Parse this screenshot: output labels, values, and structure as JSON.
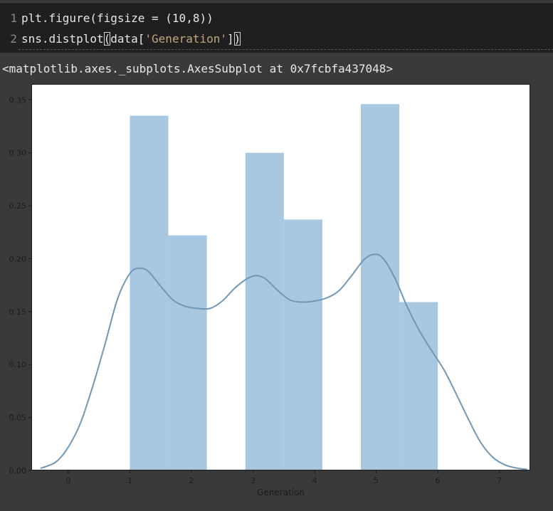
{
  "code": {
    "lines": [
      {
        "num": "1",
        "pre": "plt.figure(figsize = (10,8))",
        "str": "",
        "post": ""
      },
      {
        "num": "2",
        "pre": "sns.distplot",
        "bracket_open": "(",
        "mid": "data[",
        "str": "'Generation'",
        "post": "]",
        "bracket_close": ")"
      }
    ]
  },
  "output": {
    "text": "<matplotlib.axes._subplots.AxesSubplot at 0x7fcbfa437048>"
  },
  "colors": {
    "bar_fill": "#a8c8e1",
    "kde_line": "#6f98b8",
    "plot_bg": "#ffffff",
    "figure_bg": "#3a3a3a"
  },
  "chart_data": {
    "type": "bar",
    "overlay": "kde-line",
    "title": "",
    "xlabel": "Generation",
    "ylabel": "",
    "xlim": [
      -0.6,
      7.5
    ],
    "ylim": [
      0,
      0.365
    ],
    "xticks": [
      0,
      1,
      2,
      3,
      4,
      5,
      6,
      7
    ],
    "yticks": [
      0.0,
      0.05,
      0.1,
      0.15,
      0.2,
      0.25,
      0.3,
      0.35
    ],
    "ytick_labels": [
      "0.00",
      "0.05",
      "0.10",
      "0.15",
      "0.20",
      "0.25",
      "0.30",
      "0.35"
    ],
    "bins": [
      {
        "x0": 1.0,
        "x1": 1.625,
        "value": 0.335
      },
      {
        "x0": 1.625,
        "x1": 2.25,
        "value": 0.222
      },
      {
        "x0": 2.875,
        "x1": 3.5,
        "value": 0.3
      },
      {
        "x0": 3.5,
        "x1": 4.125,
        "value": 0.237
      },
      {
        "x0": 4.75,
        "x1": 5.375,
        "value": 0.346
      },
      {
        "x0": 5.375,
        "x1": 6.0,
        "value": 0.159
      }
    ],
    "kde": {
      "x": [
        -0.45,
        -0.2,
        0.0,
        0.2,
        0.4,
        0.6,
        0.8,
        1.0,
        1.15,
        1.3,
        1.5,
        1.7,
        1.9,
        2.1,
        2.3,
        2.5,
        2.7,
        2.9,
        3.05,
        3.2,
        3.4,
        3.6,
        3.8,
        4.0,
        4.2,
        4.4,
        4.6,
        4.8,
        4.95,
        5.1,
        5.3,
        5.5,
        5.7,
        5.9,
        6.1,
        6.3,
        6.5,
        6.7,
        6.9,
        7.1,
        7.3,
        7.45
      ],
      "y": [
        0.002,
        0.008,
        0.022,
        0.045,
        0.08,
        0.12,
        0.162,
        0.186,
        0.191,
        0.188,
        0.174,
        0.161,
        0.155,
        0.153,
        0.153,
        0.16,
        0.172,
        0.181,
        0.184,
        0.181,
        0.17,
        0.161,
        0.159,
        0.16,
        0.163,
        0.17,
        0.184,
        0.199,
        0.204,
        0.201,
        0.182,
        0.155,
        0.132,
        0.113,
        0.095,
        0.072,
        0.048,
        0.026,
        0.012,
        0.005,
        0.002,
        0.001
      ]
    }
  }
}
